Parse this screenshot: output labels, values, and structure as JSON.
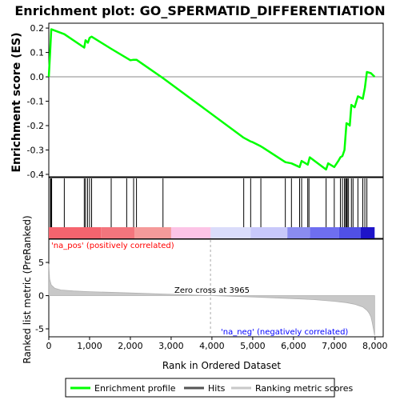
{
  "chart_data": {
    "title": "Enrichment plot: GO_SPERMATID_DIFFERENTIATION",
    "top_panel": {
      "type": "line",
      "ylabel": "Enrichment score (ES)",
      "ylim": [
        -0.41,
        0.22
      ],
      "yticks": [
        -0.4,
        -0.3,
        -0.2,
        -0.1,
        0.0,
        0.1,
        0.2
      ],
      "ytick_labels": [
        "-0.4",
        "-0.3",
        "-0.2",
        "-0.1",
        "0.0",
        "0.1",
        "0.2"
      ],
      "line_color": "#00ff00",
      "series": [
        {
          "name": "Enrichment profile",
          "x": [
            0,
            35,
            60,
            380,
            870,
            900,
            960,
            1000,
            1050,
            1530,
            1910,
            2000,
            2080,
            2150,
            2800,
            4780,
            4950,
            5000,
            5200,
            5250,
            5800,
            5950,
            6150,
            6200,
            6350,
            6400,
            6800,
            6850,
            7000,
            7100,
            7150,
            7200,
            7250,
            7300,
            7350,
            7380,
            7420,
            7500,
            7580,
            7700,
            7750,
            7800,
            7900,
            7990
          ],
          "y": [
            0.0,
            0.11,
            0.195,
            0.175,
            0.12,
            0.15,
            0.14,
            0.16,
            0.165,
            0.115,
            0.077,
            0.068,
            0.07,
            0.07,
            -0.005,
            -0.25,
            -0.265,
            -0.268,
            -0.285,
            -0.29,
            -0.35,
            -0.355,
            -0.37,
            -0.345,
            -0.36,
            -0.33,
            -0.38,
            -0.355,
            -0.37,
            -0.345,
            -0.33,
            -0.325,
            -0.3,
            -0.19,
            -0.195,
            -0.2,
            -0.115,
            -0.125,
            -0.08,
            -0.09,
            -0.045,
            0.02,
            0.015,
            0.0
          ]
        }
      ]
    },
    "hits_panel": {
      "name": "Hits",
      "x": [
        40,
        55,
        70,
        380,
        870,
        900,
        950,
        1000,
        1050,
        1530,
        1910,
        2080,
        2150,
        2800,
        4780,
        4950,
        5200,
        5800,
        5950,
        6150,
        6200,
        6350,
        6380,
        6800,
        7000,
        7150,
        7200,
        7250,
        7280,
        7300,
        7320,
        7350,
        7420,
        7460,
        7580,
        7700,
        7750,
        7800
      ]
    },
    "rank_panel": {
      "type": "area",
      "ylabel": "Ranked list metric (PreRanked)",
      "xlabel": "Rank in Ordered Dataset",
      "xlim": [
        0,
        8200
      ],
      "xticks": [
        0,
        1000,
        2000,
        3000,
        4000,
        5000,
        6000,
        7000,
        8000
      ],
      "xtick_labels": [
        "0",
        "1,000",
        "2,000",
        "3,000",
        "4,000",
        "5,000",
        "6,000",
        "7,000",
        "8,000"
      ],
      "ylim": [
        -6.2,
        8.5
      ],
      "yticks": [
        -5,
        0,
        5
      ],
      "ytick_labels": [
        "-5",
        "0",
        "5"
      ],
      "x": [
        0,
        20,
        60,
        150,
        300,
        600,
        1000,
        2000,
        3000,
        3965,
        5000,
        6000,
        6500,
        7000,
        7300,
        7500,
        7700,
        7800,
        7850,
        7900,
        7930,
        7960,
        7990
      ],
      "y": [
        4.8,
        2.5,
        1.6,
        1.1,
        0.85,
        0.7,
        0.6,
        0.4,
        0.2,
        0.0,
        -0.2,
        -0.45,
        -0.6,
        -0.85,
        -1.05,
        -1.3,
        -1.7,
        -2.2,
        -2.6,
        -3.2,
        -4.0,
        -5.0,
        -6.0
      ],
      "fill_color": "#c8c8c8",
      "zero_cross_label": "Zero cross at 3965",
      "zero_cross": 3965,
      "pos_label": "'na_pos' (positively correlated)",
      "neg_label": "'na_neg' (negatively correlated)",
      "pos_color": "#ff0000",
      "neg_color": "#0000ff"
    },
    "gradient_bar": {
      "segments": [
        {
          "from": 0,
          "to": 1280,
          "color": "#f5646e"
        },
        {
          "from": 1280,
          "to": 2100,
          "color": "#f3757d"
        },
        {
          "from": 2100,
          "to": 3000,
          "color": "#f59a9a"
        },
        {
          "from": 3000,
          "to": 3970,
          "color": "#fcc4e6"
        },
        {
          "from": 3970,
          "to": 4950,
          "color": "#dadcfa"
        },
        {
          "from": 4950,
          "to": 5850,
          "color": "#c8c8fa"
        },
        {
          "from": 5850,
          "to": 6400,
          "color": "#8a8cf0"
        },
        {
          "from": 6400,
          "to": 7120,
          "color": "#6e6ef0"
        },
        {
          "from": 7120,
          "to": 7650,
          "color": "#5050e6"
        },
        {
          "from": 7650,
          "to": 7990,
          "color": "#1e14c8"
        }
      ]
    },
    "legend": {
      "items": [
        {
          "label": "Enrichment profile",
          "color": "#00ff00"
        },
        {
          "label": "Hits",
          "color": "#555555"
        },
        {
          "label": "Ranking metric scores",
          "color": "#c8c8c8"
        }
      ]
    }
  }
}
